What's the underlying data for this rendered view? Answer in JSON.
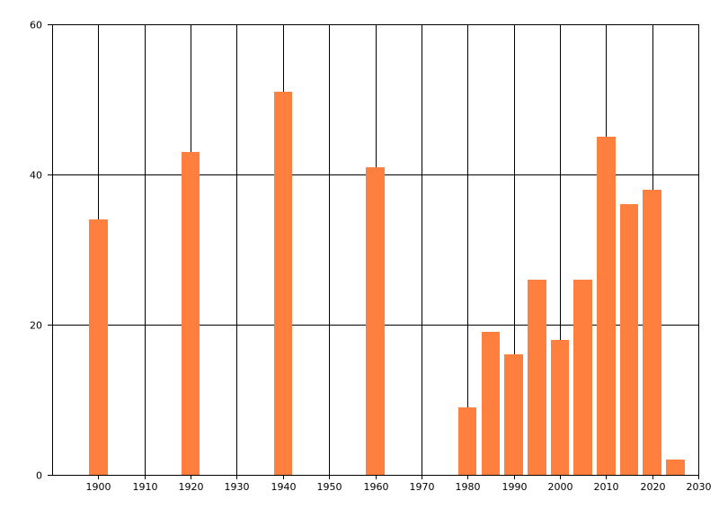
{
  "chart_data": {
    "type": "bar",
    "title": "",
    "xlabel": "",
    "ylabel": "",
    "xlim": [
      1890,
      2030
    ],
    "ylim": [
      0,
      60
    ],
    "x_ticks": [
      1900,
      1910,
      1920,
      1930,
      1940,
      1950,
      1960,
      1970,
      1980,
      1990,
      2000,
      2010,
      2020,
      2030
    ],
    "y_ticks": [
      0,
      20,
      40,
      60
    ],
    "grid": true,
    "bar_width_years": 4,
    "bar_color": "#ff7f3f",
    "series": [
      {
        "x": [
          1900,
          1920,
          1940,
          1960,
          1980,
          1985,
          1990,
          1995,
          2000,
          2005,
          2010,
          2015,
          2020,
          2025
        ],
        "values": [
          34,
          43,
          51,
          41,
          9,
          19,
          16,
          26,
          18,
          26,
          45,
          36,
          38,
          2
        ]
      }
    ]
  }
}
